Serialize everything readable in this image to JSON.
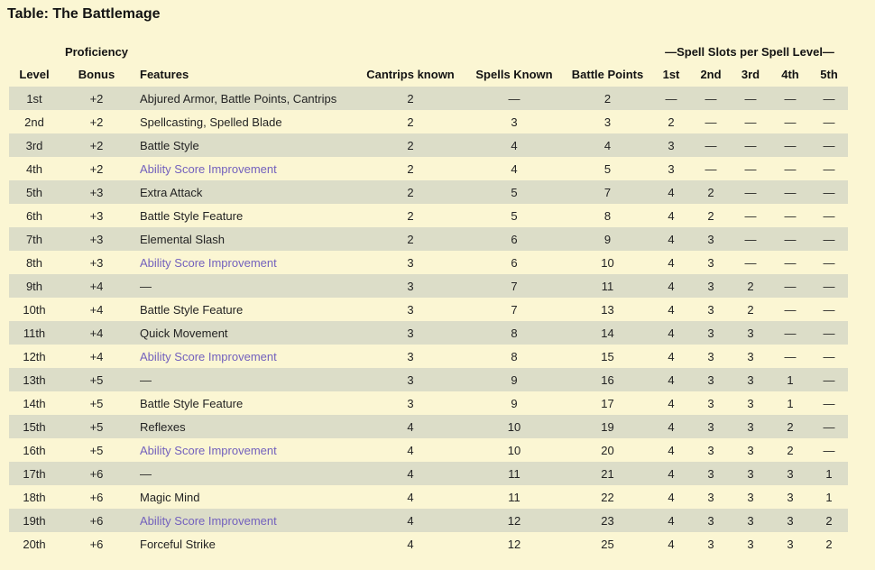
{
  "page": {
    "title": "Table: The Battlemage",
    "background_color": "#FBF6D3",
    "stripe_color": "#DCDDC8",
    "link_color": "#7361BD",
    "text_color": "#232323"
  },
  "table": {
    "headers": {
      "proficiency_top": "Proficiency",
      "spell_slots_group": "—Spell Slots per Spell Level—",
      "level": "Level",
      "bonus": "Bonus",
      "features": "Features",
      "cantrips": "Cantrips known",
      "spells": "Spells Known",
      "battle_points": "Battle Points",
      "slot_levels": [
        "1st",
        "2nd",
        "3rd",
        "4th",
        "5th"
      ]
    },
    "rows": [
      {
        "level": "1st",
        "bonus": "+2",
        "feature": "Abjured Armor, Battle Points, Cantrips",
        "feature_is_link": false,
        "cantrips": "2",
        "spells": "—",
        "battle_points": "2",
        "slots": [
          "—",
          "—",
          "—",
          "—",
          "—"
        ]
      },
      {
        "level": "2nd",
        "bonus": "+2",
        "feature": "Spellcasting, Spelled Blade",
        "feature_is_link": false,
        "cantrips": "2",
        "spells": "3",
        "battle_points": "3",
        "slots": [
          "2",
          "—",
          "—",
          "—",
          "—"
        ]
      },
      {
        "level": "3rd",
        "bonus": "+2",
        "feature": "Battle Style",
        "feature_is_link": false,
        "cantrips": "2",
        "spells": "4",
        "battle_points": "4",
        "slots": [
          "3",
          "—",
          "—",
          "—",
          "—"
        ]
      },
      {
        "level": "4th",
        "bonus": "+2",
        "feature": "Ability Score Improvement",
        "feature_is_link": true,
        "cantrips": "2",
        "spells": "4",
        "battle_points": "5",
        "slots": [
          "3",
          "—",
          "—",
          "—",
          "—"
        ]
      },
      {
        "level": "5th",
        "bonus": "+3",
        "feature": "Extra Attack",
        "feature_is_link": false,
        "cantrips": "2",
        "spells": "5",
        "battle_points": "7",
        "slots": [
          "4",
          "2",
          "—",
          "—",
          "—"
        ]
      },
      {
        "level": "6th",
        "bonus": "+3",
        "feature": "Battle Style Feature",
        "feature_is_link": false,
        "cantrips": "2",
        "spells": "5",
        "battle_points": "8",
        "slots": [
          "4",
          "2",
          "—",
          "—",
          "—"
        ]
      },
      {
        "level": "7th",
        "bonus": "+3",
        "feature": "Elemental Slash",
        "feature_is_link": false,
        "cantrips": "2",
        "spells": "6",
        "battle_points": "9",
        "slots": [
          "4",
          "3",
          "—",
          "—",
          "—"
        ]
      },
      {
        "level": "8th",
        "bonus": "+3",
        "feature": "Ability Score Improvement",
        "feature_is_link": true,
        "cantrips": "3",
        "spells": "6",
        "battle_points": "10",
        "slots": [
          "4",
          "3",
          "—",
          "—",
          "—"
        ]
      },
      {
        "level": "9th",
        "bonus": "+4",
        "feature": "—",
        "feature_is_link": false,
        "cantrips": "3",
        "spells": "7",
        "battle_points": "11",
        "slots": [
          "4",
          "3",
          "2",
          "—",
          "—"
        ]
      },
      {
        "level": "10th",
        "bonus": "+4",
        "feature": "Battle Style Feature",
        "feature_is_link": false,
        "cantrips": "3",
        "spells": "7",
        "battle_points": "13",
        "slots": [
          "4",
          "3",
          "2",
          "—",
          "—"
        ]
      },
      {
        "level": "11th",
        "bonus": "+4",
        "feature": "Quick Movement",
        "feature_is_link": false,
        "cantrips": "3",
        "spells": "8",
        "battle_points": "14",
        "slots": [
          "4",
          "3",
          "3",
          "—",
          "—"
        ]
      },
      {
        "level": "12th",
        "bonus": "+4",
        "feature": "Ability Score Improvement",
        "feature_is_link": true,
        "cantrips": "3",
        "spells": "8",
        "battle_points": "15",
        "slots": [
          "4",
          "3",
          "3",
          "—",
          "—"
        ]
      },
      {
        "level": "13th",
        "bonus": "+5",
        "feature": "—",
        "feature_is_link": false,
        "cantrips": "3",
        "spells": "9",
        "battle_points": "16",
        "slots": [
          "4",
          "3",
          "3",
          "1",
          "—"
        ]
      },
      {
        "level": "14th",
        "bonus": "+5",
        "feature": "Battle Style Feature",
        "feature_is_link": false,
        "cantrips": "3",
        "spells": "9",
        "battle_points": "17",
        "slots": [
          "4",
          "3",
          "3",
          "1",
          "—"
        ]
      },
      {
        "level": "15th",
        "bonus": "+5",
        "feature": "Reflexes",
        "feature_is_link": false,
        "cantrips": "4",
        "spells": "10",
        "battle_points": "19",
        "slots": [
          "4",
          "3",
          "3",
          "2",
          "—"
        ]
      },
      {
        "level": "16th",
        "bonus": "+5",
        "feature": "Ability Score Improvement",
        "feature_is_link": true,
        "cantrips": "4",
        "spells": "10",
        "battle_points": "20",
        "slots": [
          "4",
          "3",
          "3",
          "2",
          "—"
        ]
      },
      {
        "level": "17th",
        "bonus": "+6",
        "feature": "—",
        "feature_is_link": false,
        "cantrips": "4",
        "spells": "11",
        "battle_points": "21",
        "slots": [
          "4",
          "3",
          "3",
          "3",
          "1"
        ]
      },
      {
        "level": "18th",
        "bonus": "+6",
        "feature": "Magic Mind",
        "feature_is_link": false,
        "cantrips": "4",
        "spells": "11",
        "battle_points": "22",
        "slots": [
          "4",
          "3",
          "3",
          "3",
          "1"
        ]
      },
      {
        "level": "19th",
        "bonus": "+6",
        "feature": "Ability Score Improvement",
        "feature_is_link": true,
        "cantrips": "4",
        "spells": "12",
        "battle_points": "23",
        "slots": [
          "4",
          "3",
          "3",
          "3",
          "2"
        ]
      },
      {
        "level": "20th",
        "bonus": "+6",
        "feature": "Forceful Strike",
        "feature_is_link": false,
        "cantrips": "4",
        "spells": "12",
        "battle_points": "25",
        "slots": [
          "4",
          "3",
          "3",
          "3",
          "2"
        ]
      }
    ]
  }
}
